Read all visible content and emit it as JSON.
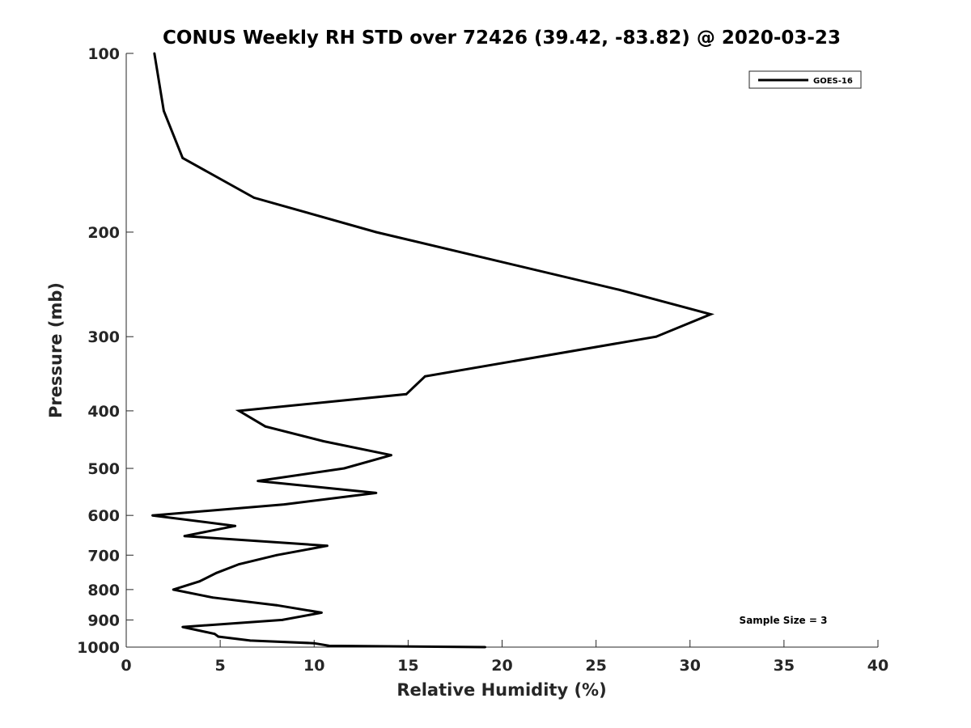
{
  "chart_data": {
    "type": "line",
    "title": "CONUS Weekly RH STD over 72426 (39.42, -83.82) @ 2020-03-23",
    "xlabel": "Relative Humidity (%)",
    "ylabel": "Pressure (mb)",
    "xlim": [
      0,
      40
    ],
    "ylim": [
      100,
      1000
    ],
    "y_scale": "log",
    "y_reversed": true,
    "xticks": [
      0,
      5,
      10,
      15,
      20,
      25,
      30,
      35,
      40
    ],
    "yticks": [
      100,
      200,
      300,
      400,
      500,
      600,
      700,
      800,
      900,
      1000
    ],
    "grid": false,
    "legend_position": "top-right",
    "annotation": "Sample Size = 3",
    "series": [
      {
        "name": "GOES-16",
        "color": "#000000",
        "points": [
          {
            "x": 1.5,
            "y": 100
          },
          {
            "x": 2.0,
            "y": 125
          },
          {
            "x": 3.0,
            "y": 150
          },
          {
            "x": 6.8,
            "y": 175
          },
          {
            "x": 13.3,
            "y": 200
          },
          {
            "x": 26.2,
            "y": 250
          },
          {
            "x": 31.1,
            "y": 275
          },
          {
            "x": 28.2,
            "y": 300
          },
          {
            "x": 15.9,
            "y": 350
          },
          {
            "x": 14.9,
            "y": 375
          },
          {
            "x": 6.0,
            "y": 400
          },
          {
            "x": 7.4,
            "y": 425
          },
          {
            "x": 10.5,
            "y": 450
          },
          {
            "x": 14.1,
            "y": 475
          },
          {
            "x": 11.6,
            "y": 500
          },
          {
            "x": 7.0,
            "y": 525
          },
          {
            "x": 13.3,
            "y": 550
          },
          {
            "x": 8.4,
            "y": 575
          },
          {
            "x": 1.4,
            "y": 600
          },
          {
            "x": 5.8,
            "y": 625
          },
          {
            "x": 3.1,
            "y": 650
          },
          {
            "x": 10.7,
            "y": 675
          },
          {
            "x": 8.0,
            "y": 700
          },
          {
            "x": 6.0,
            "y": 725
          },
          {
            "x": 4.8,
            "y": 750
          },
          {
            "x": 3.9,
            "y": 775
          },
          {
            "x": 2.5,
            "y": 800
          },
          {
            "x": 4.6,
            "y": 825
          },
          {
            "x": 8.0,
            "y": 850
          },
          {
            "x": 10.4,
            "y": 875
          },
          {
            "x": 8.3,
            "y": 900
          },
          {
            "x": 3.0,
            "y": 925
          },
          {
            "x": 4.7,
            "y": 950
          },
          {
            "x": 4.9,
            "y": 960
          },
          {
            "x": 6.6,
            "y": 975
          },
          {
            "x": 10.0,
            "y": 985
          },
          {
            "x": 10.8,
            "y": 995
          },
          {
            "x": 19.1,
            "y": 1000
          }
        ]
      }
    ]
  }
}
